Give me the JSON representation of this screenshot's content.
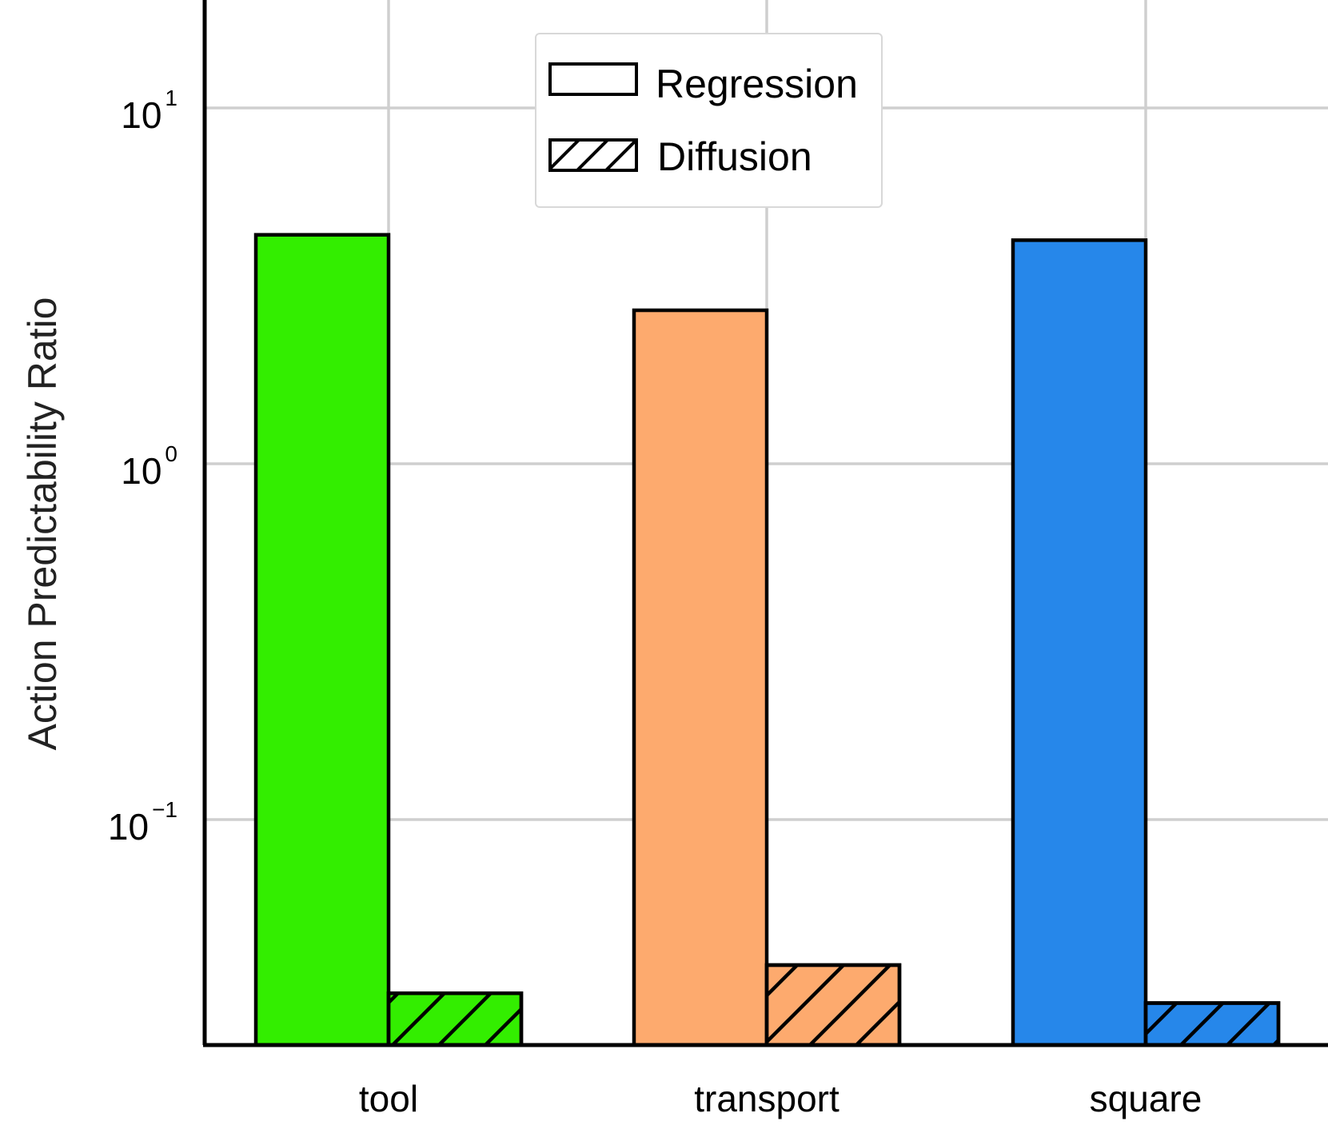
{
  "chart_data": {
    "type": "bar",
    "ylabel": "Action Predictability Ratio",
    "xlabel": "",
    "yscale": "log",
    "ylim": [
      0.024,
      21
    ],
    "grid": true,
    "categories": [
      "tool",
      "transport",
      "square"
    ],
    "series": [
      {
        "name": "Regression",
        "hatch": "none",
        "values": [
          4.4,
          2.7,
          4.25
        ]
      },
      {
        "name": "Diffusion",
        "hatch": "diagonal",
        "values": [
          0.0325,
          0.039,
          0.0305
        ]
      }
    ],
    "category_colors": [
      "#33ee00",
      "#fdaa6e",
      "#2687ea"
    ],
    "yticks": [
      {
        "value": 10,
        "base": "10",
        "exp": "1"
      },
      {
        "value": 1,
        "base": "10",
        "exp": "0"
      },
      {
        "value": 0.1,
        "base": "10",
        "exp": "−1"
      }
    ],
    "legend": {
      "position": "top-center",
      "entries": [
        "Regression",
        "Diffusion"
      ]
    }
  }
}
